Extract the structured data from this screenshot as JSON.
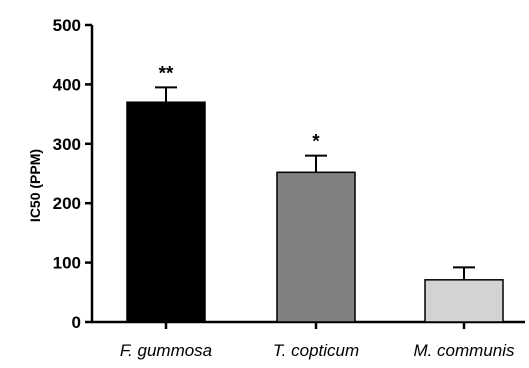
{
  "chart_data": {
    "type": "bar",
    "categories": [
      "F. gummosa",
      "T. copticum",
      "M. communis"
    ],
    "values": [
      370,
      252,
      71
    ],
    "errors": [
      25,
      28,
      21
    ],
    "significance": [
      "**",
      "*",
      ""
    ],
    "colors": [
      "#000000",
      "#808080",
      "#d3d3d3"
    ],
    "title": "",
    "xlabel": "",
    "ylabel": "IC50 (PPM)",
    "ylim": [
      0,
      500
    ],
    "yticks": [
      0,
      100,
      200,
      300,
      400,
      500
    ],
    "grid": false,
    "legend": "none"
  }
}
